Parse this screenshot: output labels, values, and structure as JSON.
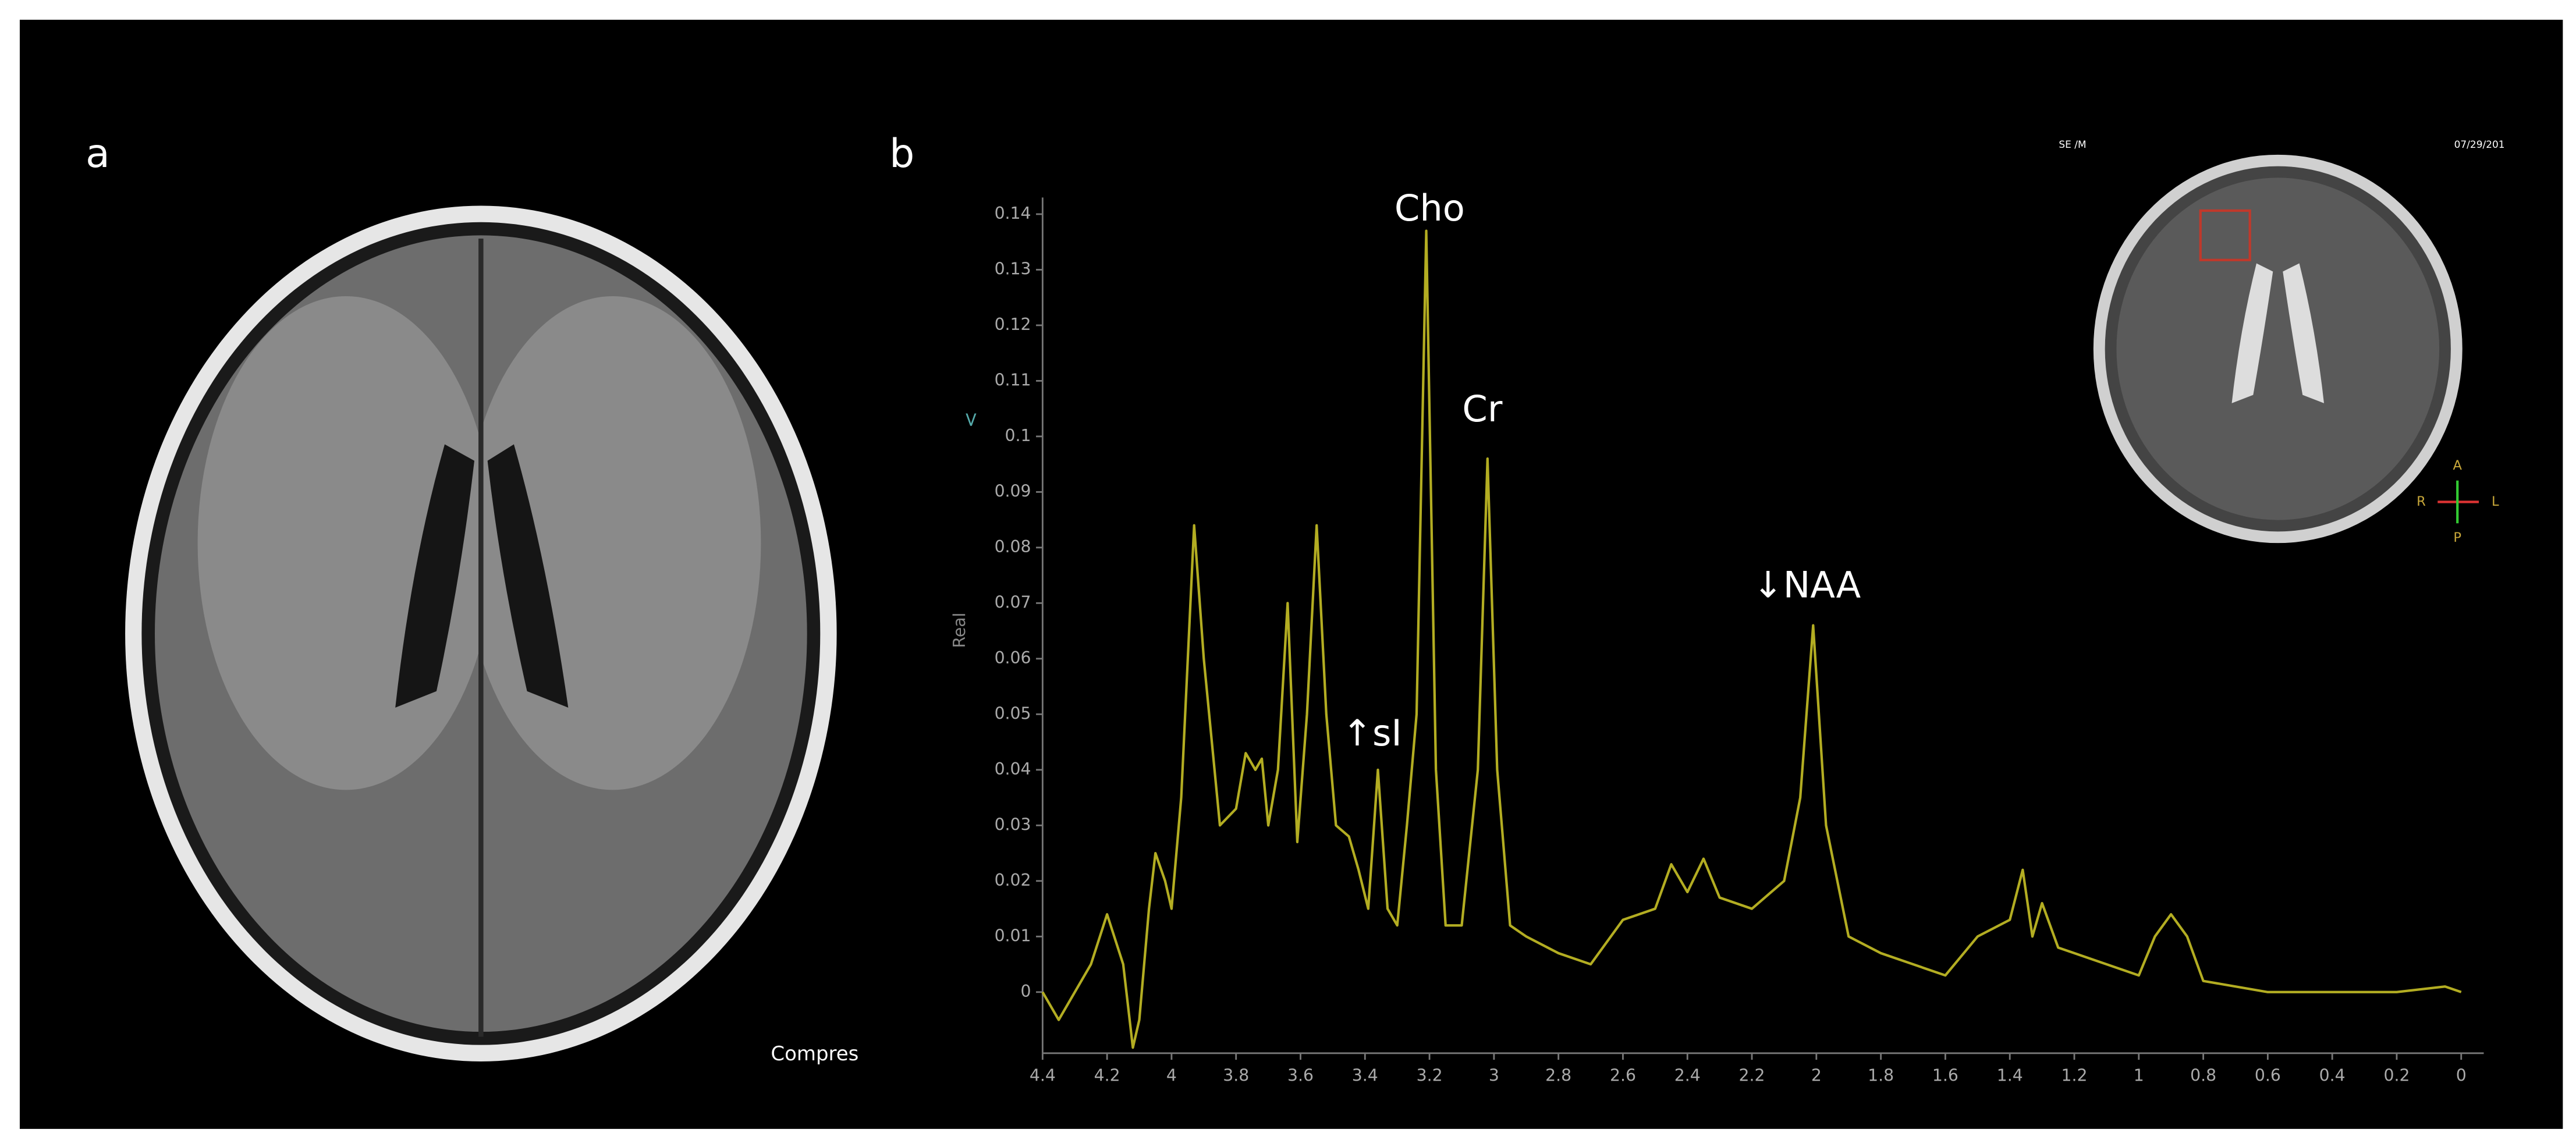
{
  "labels": {
    "panel_a": "a",
    "panel_b": "b",
    "compress": "Compres",
    "inset_left": "SE /M",
    "inset_date": "07/29/201",
    "orient_a": "A",
    "orient_p": "P",
    "orient_r": "R",
    "orient_l": "L",
    "marker": "<"
  },
  "chart_data": {
    "type": "line",
    "ylabel": "Real",
    "color": "#b3ad22",
    "x": [
      4.4,
      4.35,
      4.3,
      4.25,
      4.2,
      4.15,
      4.12,
      4.1,
      4.07,
      4.05,
      4.02,
      4.0,
      3.97,
      3.93,
      3.9,
      3.85,
      3.8,
      3.77,
      3.74,
      3.72,
      3.7,
      3.67,
      3.64,
      3.61,
      3.58,
      3.55,
      3.52,
      3.49,
      3.45,
      3.42,
      3.39,
      3.36,
      3.33,
      3.3,
      3.27,
      3.24,
      3.21,
      3.18,
      3.15,
      3.1,
      3.05,
      3.02,
      2.99,
      2.95,
      2.9,
      2.8,
      2.7,
      2.6,
      2.5,
      2.45,
      2.4,
      2.35,
      2.3,
      2.2,
      2.1,
      2.05,
      2.01,
      1.97,
      1.9,
      1.8,
      1.7,
      1.6,
      1.5,
      1.4,
      1.36,
      1.33,
      1.3,
      1.25,
      1.1,
      1.0,
      0.95,
      0.9,
      0.85,
      0.8,
      0.6,
      0.4,
      0.2,
      0.05,
      0.0
    ],
    "values": [
      0.0,
      -0.005,
      0.0,
      0.005,
      0.014,
      0.005,
      -0.01,
      -0.005,
      0.015,
      0.025,
      0.02,
      0.015,
      0.035,
      0.084,
      0.06,
      0.03,
      0.033,
      0.043,
      0.04,
      0.042,
      0.03,
      0.04,
      0.07,
      0.027,
      0.05,
      0.084,
      0.05,
      0.03,
      0.028,
      0.022,
      0.015,
      0.04,
      0.015,
      0.012,
      0.03,
      0.05,
      0.137,
      0.04,
      0.012,
      0.012,
      0.04,
      0.096,
      0.04,
      0.012,
      0.01,
      0.007,
      0.005,
      0.013,
      0.015,
      0.023,
      0.018,
      0.024,
      0.017,
      0.015,
      0.02,
      0.035,
      0.066,
      0.03,
      0.01,
      0.007,
      0.005,
      0.003,
      0.01,
      0.013,
      0.022,
      0.01,
      0.016,
      0.008,
      0.005,
      0.003,
      0.01,
      0.014,
      0.01,
      0.002,
      0.0,
      0.0,
      0.0,
      0.001,
      0.0
    ],
    "xlim": [
      4.4,
      -0.07
    ],
    "ylim": [
      -0.011,
      0.143
    ],
    "xticks": [
      4.4,
      4.2,
      4,
      3.8,
      3.6,
      3.4,
      3.2,
      3,
      2.8,
      2.6,
      2.4,
      2.2,
      2,
      1.8,
      1.6,
      1.4,
      1.2,
      1,
      0.8,
      0.6,
      0.4,
      0.2,
      0
    ],
    "yticks": [
      0,
      0.01,
      0.02,
      0.03,
      0.04,
      0.05,
      0.06,
      0.07,
      0.08,
      0.09,
      0.1,
      0.11,
      0.12,
      0.13,
      0.14
    ],
    "grid": false,
    "annotations": [
      "Cho",
      "Cr",
      "↑sI",
      "↓NAA"
    ]
  }
}
